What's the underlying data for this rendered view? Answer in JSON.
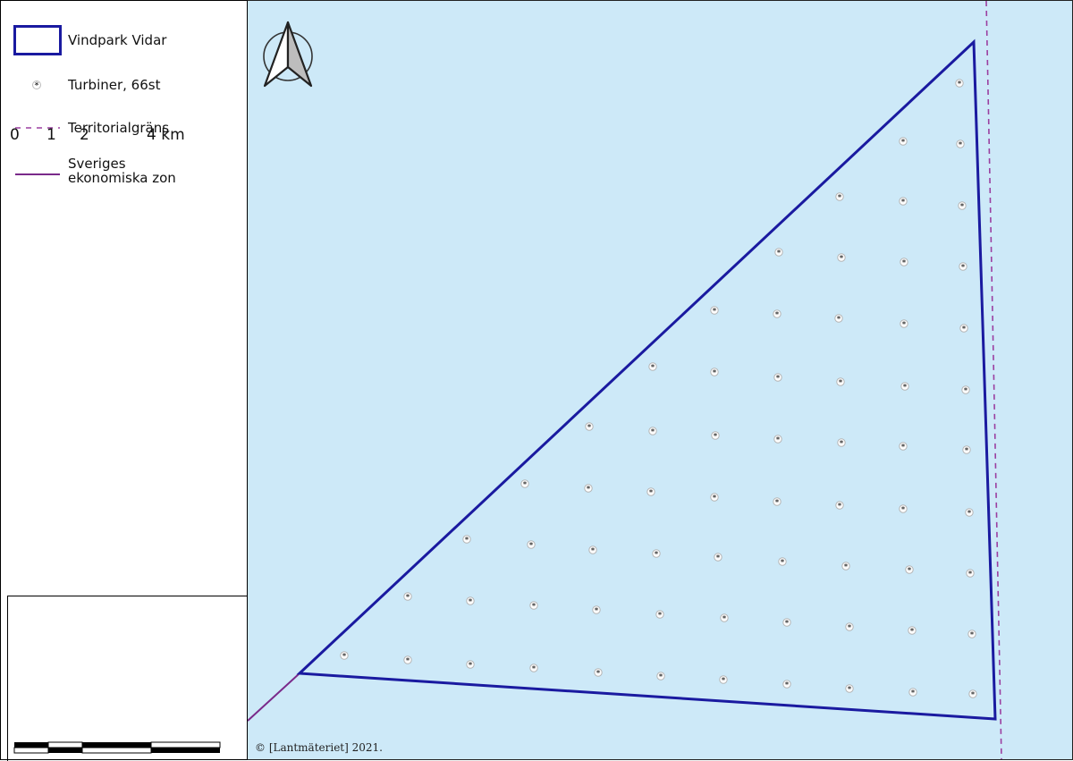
{
  "legend": {
    "items": [
      {
        "id": "park",
        "label": "Vindpark Vidar"
      },
      {
        "id": "turbines",
        "label": "Turbiner, 66st"
      },
      {
        "id": "territorial",
        "label": "Territorialgräns"
      },
      {
        "id": "eez",
        "label": "Sveriges\nekonomiska zon"
      }
    ]
  },
  "scale_bar": {
    "ticks": [
      "0",
      "1",
      "2",
      "4 km"
    ]
  },
  "map": {
    "copyright": "© [Lantmäteriet] 2021.",
    "north_arrow_icon": "north-arrow-icon",
    "colors": {
      "water": "#cde9f8",
      "park_outline": "#1a1aa0",
      "territorial_line": "#9b3fa0",
      "eez_line": "#7a2a8a"
    }
  }
}
